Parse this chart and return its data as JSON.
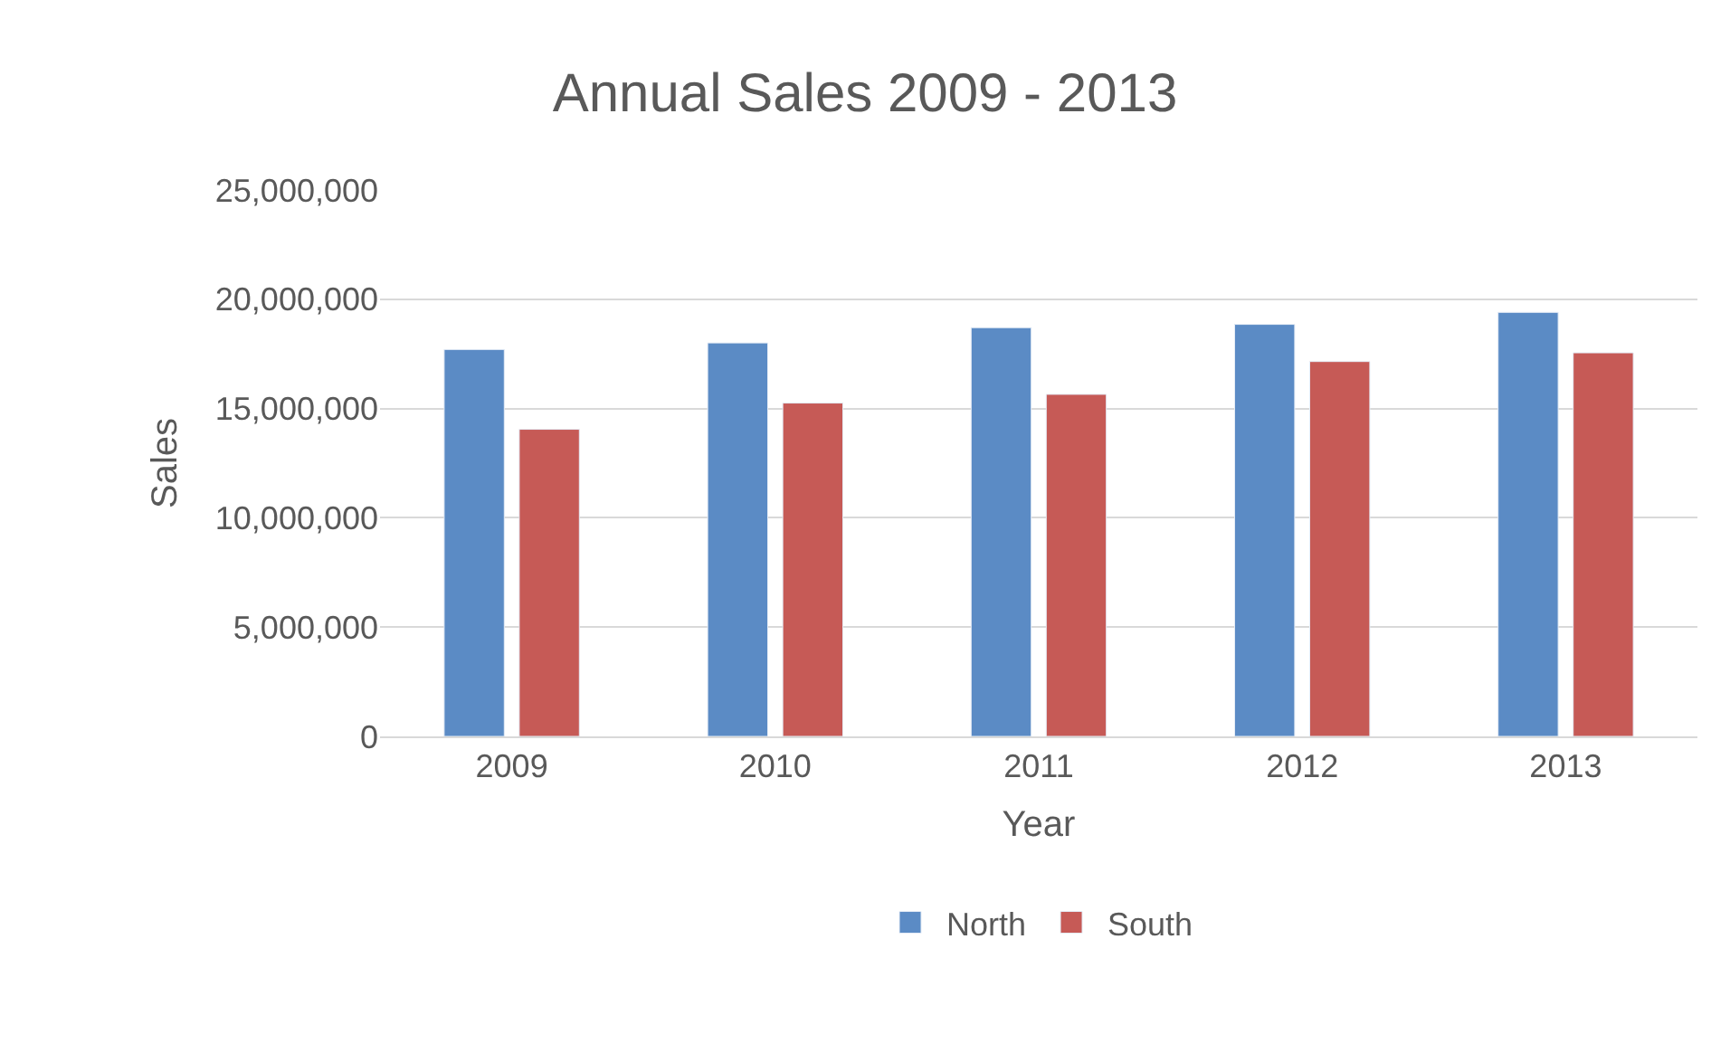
{
  "chart_data": {
    "type": "bar",
    "title": "Annual Sales 2009 - 2013",
    "xlabel": "Year",
    "ylabel": "Sales",
    "categories": [
      "2009",
      "2010",
      "2011",
      "2012",
      "2013"
    ],
    "series": [
      {
        "name": "North",
        "color": "#5b8bc5",
        "values": [
          17700000,
          18000000,
          18700000,
          18850000,
          19400000
        ]
      },
      {
        "name": "South",
        "color": "#c65a56",
        "values": [
          14050000,
          15250000,
          15650000,
          17150000,
          17550000
        ]
      }
    ],
    "ylim": [
      0,
      25000000
    ],
    "yticks": [
      {
        "value": 0,
        "label": "0"
      },
      {
        "value": 5000000,
        "label": "5,000,000"
      },
      {
        "value": 10000000,
        "label": "10,000,000"
      },
      {
        "value": 15000000,
        "label": "15,000,000"
      },
      {
        "value": 20000000,
        "label": "20,000,000"
      },
      {
        "value": 25000000,
        "label": "25,000,000"
      }
    ],
    "grid": "y",
    "legend": "bottom"
  }
}
